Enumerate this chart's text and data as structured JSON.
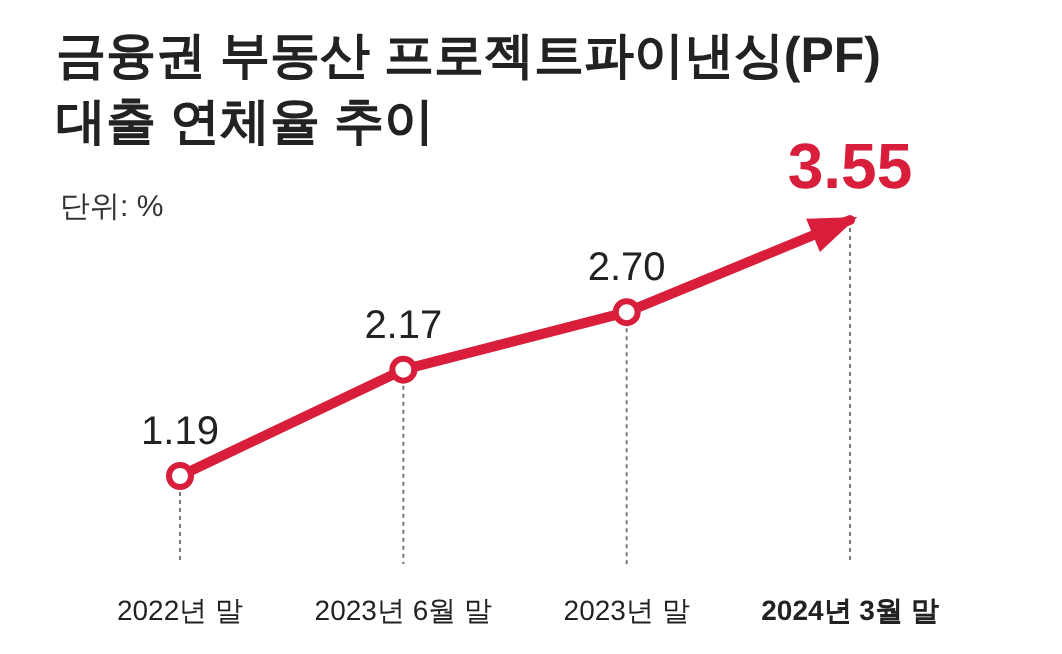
{
  "chart_data": {
    "type": "line",
    "title": "금융권 부동산 프로젝트파이낸싱(PF)\n대출 연체율 추이",
    "subtitle": "단위: %",
    "categories": [
      "2022년 말",
      "2023년 6월 말",
      "2023년 말",
      "2024년 3월 말"
    ],
    "series": [
      {
        "color": "#d81e3a",
        "values": [
          1.19,
          2.17,
          2.7,
          3.55
        ],
        "value_labels": [
          "1.19",
          "2.17",
          "2.70",
          "3.55"
        ]
      }
    ],
    "marker": "circle",
    "line_style": "solid",
    "grid": "x"
  }
}
